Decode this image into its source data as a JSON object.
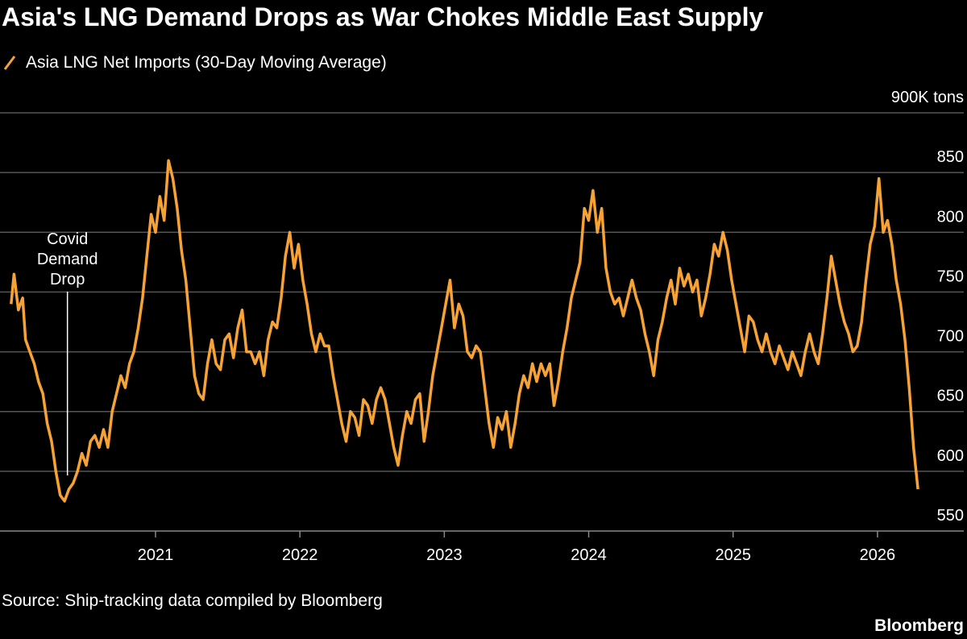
{
  "chart_data": {
    "type": "line",
    "title": "Asia's LNG Demand Drops as War Chokes Middle East Supply",
    "source": "Source: Ship-tracking data compiled by Bloomberg",
    "brand": "Bloomberg",
    "annotations": [
      {
        "text": "Covid Demand Drop",
        "x": 2020.39
      }
    ],
    "x": [
      2020.0,
      2020.02,
      2020.05,
      2020.08,
      2020.1,
      2020.13,
      2020.16,
      2020.19,
      2020.22,
      2020.25,
      2020.28,
      2020.31,
      2020.34,
      2020.37,
      2020.4,
      2020.43,
      2020.46,
      2020.49,
      2020.52,
      2020.55,
      2020.58,
      2020.61,
      2020.64,
      2020.67,
      2020.7,
      2020.73,
      2020.76,
      2020.79,
      2020.82,
      2020.85,
      2020.88,
      2020.91,
      2020.94,
      2020.97,
      2021.0,
      2021.03,
      2021.06,
      2021.09,
      2021.12,
      2021.15,
      2021.18,
      2021.21,
      2021.24,
      2021.27,
      2021.3,
      2021.33,
      2021.36,
      2021.39,
      2021.42,
      2021.45,
      2021.48,
      2021.51,
      2021.54,
      2021.57,
      2021.6,
      2021.63,
      2021.66,
      2021.69,
      2021.72,
      2021.75,
      2021.78,
      2021.81,
      2021.84,
      2021.87,
      2021.9,
      2021.93,
      2021.96,
      2021.99,
      2022.02,
      2022.05,
      2022.08,
      2022.11,
      2022.14,
      2022.17,
      2022.2,
      2022.23,
      2022.26,
      2022.29,
      2022.32,
      2022.35,
      2022.38,
      2022.41,
      2022.44,
      2022.47,
      2022.5,
      2022.53,
      2022.56,
      2022.59,
      2022.62,
      2022.65,
      2022.68,
      2022.71,
      2022.74,
      2022.77,
      2022.8,
      2022.83,
      2022.86,
      2022.89,
      2022.92,
      2022.95,
      2022.98,
      2023.01,
      2023.04,
      2023.07,
      2023.1,
      2023.13,
      2023.16,
      2023.19,
      2023.22,
      2023.25,
      2023.28,
      2023.31,
      2023.34,
      2023.37,
      2023.4,
      2023.43,
      2023.46,
      2023.49,
      2023.52,
      2023.55,
      2023.58,
      2023.61,
      2023.64,
      2023.67,
      2023.7,
      2023.73,
      2023.76,
      2023.79,
      2023.82,
      2023.85,
      2023.88,
      2023.91,
      2023.94,
      2023.97,
      2024.0,
      2024.03,
      2024.06,
      2024.09,
      2024.12,
      2024.15,
      2024.18,
      2024.21,
      2024.24,
      2024.27,
      2024.3,
      2024.33,
      2024.36,
      2024.39,
      2024.42,
      2024.45,
      2024.48,
      2024.51,
      2024.54,
      2024.57,
      2024.6,
      2024.63,
      2024.66,
      2024.69,
      2024.72,
      2024.75,
      2024.78,
      2024.81,
      2024.84,
      2024.87,
      2024.9,
      2024.93,
      2024.96,
      2024.99,
      2025.02,
      2025.05,
      2025.08,
      2025.11,
      2025.14,
      2025.17,
      2025.2,
      2025.23,
      2025.26,
      2025.29,
      2025.32,
      2025.35,
      2025.38,
      2025.41,
      2025.44,
      2025.47,
      2025.5,
      2025.53,
      2025.56,
      2025.59,
      2025.62,
      2025.65,
      2025.68,
      2025.71,
      2025.74,
      2025.77,
      2025.8,
      2025.83,
      2025.86,
      2025.89,
      2025.92,
      2025.95,
      2025.98,
      2026.01,
      2026.04,
      2026.07,
      2026.1,
      2026.13,
      2026.16,
      2026.19,
      2026.22,
      2026.25,
      2026.28
    ],
    "series": [
      {
        "name": "Asia LNG Net Imports (30-Day Moving Average)",
        "color": "#f7a234",
        "values": [
          740,
          765,
          735,
          745,
          710,
          700,
          690,
          675,
          665,
          640,
          625,
          600,
          580,
          575,
          585,
          590,
          600,
          615,
          605,
          625,
          630,
          620,
          635,
          620,
          650,
          665,
          680,
          670,
          690,
          700,
          720,
          745,
          780,
          815,
          800,
          830,
          810,
          860,
          845,
          820,
          785,
          760,
          720,
          680,
          665,
          660,
          690,
          710,
          690,
          685,
          710,
          715,
          695,
          720,
          735,
          700,
          700,
          690,
          700,
          680,
          710,
          725,
          720,
          745,
          780,
          800,
          770,
          790,
          760,
          740,
          715,
          700,
          715,
          705,
          705,
          680,
          660,
          640,
          625,
          650,
          645,
          630,
          660,
          655,
          640,
          660,
          670,
          660,
          640,
          620,
          605,
          630,
          650,
          640,
          660,
          665,
          625,
          650,
          680,
          700,
          720,
          740,
          760,
          720,
          740,
          730,
          700,
          695,
          705,
          700,
          670,
          640,
          620,
          645,
          635,
          650,
          620,
          640,
          665,
          680,
          670,
          690,
          675,
          690,
          680,
          690,
          655,
          675,
          700,
          720,
          745,
          760,
          775,
          820,
          810,
          835,
          800,
          820,
          770,
          750,
          740,
          745,
          730,
          745,
          760,
          745,
          735,
          715,
          700,
          680,
          710,
          725,
          745,
          760,
          740,
          770,
          755,
          765,
          750,
          760,
          730,
          745,
          765,
          790,
          780,
          800,
          785,
          760,
          740,
          720,
          700,
          730,
          725,
          710,
          700,
          715,
          700,
          690,
          705,
          695,
          685,
          700,
          690,
          680,
          700,
          715,
          700,
          690,
          715,
          745,
          780,
          760,
          740,
          725,
          715,
          700,
          705,
          725,
          760,
          790,
          805,
          845,
          800,
          810,
          790,
          760,
          740,
          710,
          670,
          620,
          585
        ]
      }
    ],
    "xlim": [
      2019.923,
      2026.62
    ],
    "xticks": [
      2021,
      2022,
      2023,
      2024,
      2025,
      2026
    ],
    "ylim": [
      550,
      900
    ],
    "yticks": [
      550,
      600,
      650,
      700,
      750,
      800,
      850,
      {
        "value": 900,
        "label": "900K tons"
      }
    ],
    "grid": true
  }
}
